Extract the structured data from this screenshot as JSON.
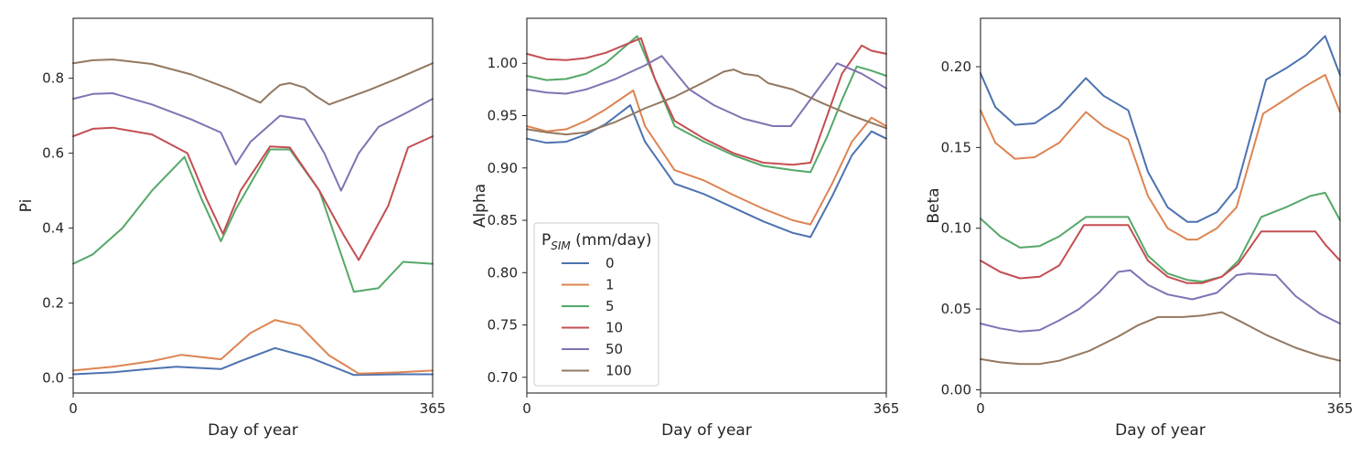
{
  "colors": {
    "0": "#4c72b0",
    "1": "#dd8452",
    "5": "#55a868",
    "10": "#c44e52",
    "50": "#8172b3",
    "100": "#937860"
  },
  "legend": {
    "title_main": "P",
    "title_sub": "SIM",
    "title_rest": " (mm/day)",
    "entries": [
      "0",
      "1",
      "5",
      "10",
      "50",
      "100"
    ]
  },
  "chart_data": [
    {
      "type": "line",
      "xlabel": "Day of year",
      "ylabel": "Pi",
      "xlim": [
        0,
        365
      ],
      "ylim": [
        -0.04,
        0.96
      ],
      "xticks": [
        0,
        365
      ],
      "xtick_labels": [
        "0",
        "365"
      ],
      "yticks": [
        0.0,
        0.2,
        0.4,
        0.6,
        0.8
      ],
      "ytick_labels": [
        "0.0",
        "0.2",
        "0.4",
        "0.6",
        "0.8"
      ],
      "series": [
        {
          "name": "0",
          "x": [
            0,
            40,
            80,
            105,
            120,
            150,
            170,
            205,
            240,
            285,
            330,
            365
          ],
          "y": [
            0.01,
            0.015,
            0.025,
            0.03,
            0.028,
            0.024,
            0.045,
            0.08,
            0.055,
            0.008,
            0.01,
            0.01
          ]
        },
        {
          "name": "1",
          "x": [
            0,
            40,
            80,
            110,
            150,
            180,
            205,
            230,
            260,
            290,
            330,
            365
          ],
          "y": [
            0.02,
            0.03,
            0.045,
            0.062,
            0.05,
            0.12,
            0.155,
            0.14,
            0.06,
            0.012,
            0.015,
            0.02
          ]
        },
        {
          "name": "5",
          "x": [
            0,
            20,
            50,
            80,
            113,
            130,
            150,
            165,
            200,
            220,
            250,
            285,
            310,
            335,
            365
          ],
          "y": [
            0.305,
            0.33,
            0.4,
            0.5,
            0.59,
            0.48,
            0.365,
            0.45,
            0.61,
            0.61,
            0.5,
            0.23,
            0.24,
            0.31,
            0.305
          ]
        },
        {
          "name": "10",
          "x": [
            0,
            20,
            40,
            80,
            116,
            135,
            152,
            170,
            200,
            220,
            250,
            275,
            290,
            320,
            340,
            365
          ],
          "y": [
            0.645,
            0.665,
            0.668,
            0.65,
            0.6,
            0.48,
            0.385,
            0.5,
            0.618,
            0.615,
            0.5,
            0.38,
            0.315,
            0.46,
            0.615,
            0.645
          ]
        },
        {
          "name": "50",
          "x": [
            0,
            20,
            40,
            80,
            120,
            150,
            165,
            180,
            210,
            235,
            255,
            272,
            290,
            310,
            340,
            365
          ],
          "y": [
            0.745,
            0.758,
            0.76,
            0.73,
            0.69,
            0.655,
            0.57,
            0.63,
            0.7,
            0.69,
            0.6,
            0.5,
            0.6,
            0.67,
            0.71,
            0.745
          ]
        },
        {
          "name": "100",
          "x": [
            0,
            20,
            40,
            80,
            120,
            160,
            190,
            200,
            210,
            220,
            235,
            245,
            260,
            300,
            330,
            365
          ],
          "y": [
            0.84,
            0.848,
            0.85,
            0.838,
            0.81,
            0.77,
            0.735,
            0.76,
            0.782,
            0.787,
            0.775,
            0.755,
            0.73,
            0.768,
            0.8,
            0.84
          ]
        }
      ]
    },
    {
      "type": "line",
      "xlabel": "Day of year",
      "ylabel": "Alpha",
      "xlim": [
        0,
        365
      ],
      "ylim": [
        0.685,
        1.043
      ],
      "xticks": [
        0,
        365
      ],
      "xtick_labels": [
        "0",
        "365"
      ],
      "yticks": [
        0.7,
        0.75,
        0.8,
        0.85,
        0.9,
        0.95,
        1.0
      ],
      "ytick_labels": [
        "0.70",
        "0.75",
        "0.80",
        "0.85",
        "0.90",
        "0.95",
        "1.00"
      ],
      "series": [
        {
          "name": "0",
          "x": [
            0,
            20,
            40,
            60,
            80,
            105,
            120,
            150,
            180,
            210,
            240,
            270,
            288,
            310,
            330,
            350,
            365
          ],
          "y": [
            0.928,
            0.924,
            0.925,
            0.932,
            0.942,
            0.96,
            0.925,
            0.885,
            0.875,
            0.862,
            0.849,
            0.838,
            0.834,
            0.873,
            0.912,
            0.935,
            0.928
          ]
        },
        {
          "name": "1",
          "x": [
            0,
            20,
            40,
            60,
            80,
            108,
            120,
            150,
            180,
            210,
            240,
            270,
            288,
            310,
            330,
            350,
            365
          ],
          "y": [
            0.94,
            0.935,
            0.937,
            0.945,
            0.956,
            0.974,
            0.94,
            0.898,
            0.888,
            0.874,
            0.861,
            0.85,
            0.846,
            0.885,
            0.925,
            0.948,
            0.94
          ]
        },
        {
          "name": "5",
          "x": [
            0,
            20,
            40,
            60,
            80,
            112,
            130,
            150,
            180,
            210,
            240,
            270,
            288,
            305,
            320,
            335,
            350,
            365
          ],
          "y": [
            0.988,
            0.984,
            0.985,
            0.99,
            1.0,
            1.026,
            0.985,
            0.94,
            0.925,
            0.912,
            0.902,
            0.898,
            0.896,
            0.93,
            0.965,
            0.997,
            0.993,
            0.988
          ]
        },
        {
          "name": "10",
          "x": [
            0,
            20,
            40,
            60,
            80,
            116,
            130,
            150,
            180,
            210,
            240,
            270,
            288,
            305,
            320,
            340,
            350,
            365
          ],
          "y": [
            1.009,
            1.004,
            1.003,
            1.005,
            1.01,
            1.024,
            0.985,
            0.945,
            0.928,
            0.914,
            0.905,
            0.903,
            0.905,
            0.95,
            0.99,
            1.017,
            1.012,
            1.009
          ]
        },
        {
          "name": "50",
          "x": [
            0,
            20,
            40,
            60,
            90,
            120,
            137,
            165,
            190,
            220,
            250,
            268,
            290,
            315,
            340,
            365
          ],
          "y": [
            0.975,
            0.972,
            0.971,
            0.975,
            0.985,
            0.998,
            1.007,
            0.975,
            0.96,
            0.947,
            0.94,
            0.94,
            0.968,
            1.0,
            0.99,
            0.976
          ]
        },
        {
          "name": "100",
          "x": [
            0,
            20,
            40,
            60,
            90,
            120,
            150,
            180,
            200,
            210,
            220,
            235,
            245,
            270,
            300,
            330,
            365
          ],
          "y": [
            0.937,
            0.934,
            0.932,
            0.934,
            0.944,
            0.957,
            0.968,
            0.982,
            0.992,
            0.994,
            0.99,
            0.988,
            0.981,
            0.975,
            0.962,
            0.95,
            0.938
          ]
        }
      ]
    },
    {
      "type": "line",
      "xlabel": "Day of year",
      "ylabel": "Beta",
      "xlim": [
        0,
        365
      ],
      "ylim": [
        -0.002,
        0.23
      ],
      "xticks": [
        0,
        365
      ],
      "xtick_labels": [
        "0",
        "365"
      ],
      "yticks": [
        0.0,
        0.05,
        0.1,
        0.15,
        0.2
      ],
      "ytick_labels": [
        "0.00",
        "0.05",
        "0.10",
        "0.15",
        "0.20"
      ],
      "series": [
        {
          "name": "0",
          "x": [
            0,
            15,
            35,
            55,
            80,
            107,
            125,
            150,
            170,
            190,
            210,
            220,
            240,
            260,
            290,
            310,
            330,
            350,
            365
          ],
          "y": [
            0.196,
            0.175,
            0.164,
            0.165,
            0.175,
            0.193,
            0.182,
            0.173,
            0.135,
            0.113,
            0.104,
            0.104,
            0.11,
            0.125,
            0.192,
            0.199,
            0.207,
            0.219,
            0.195
          ]
        },
        {
          "name": "1",
          "x": [
            0,
            15,
            35,
            55,
            80,
            107,
            125,
            150,
            170,
            190,
            210,
            220,
            240,
            260,
            287,
            310,
            330,
            350,
            365
          ],
          "y": [
            0.173,
            0.153,
            0.143,
            0.144,
            0.153,
            0.172,
            0.163,
            0.155,
            0.12,
            0.1,
            0.093,
            0.093,
            0.1,
            0.113,
            0.171,
            0.18,
            0.188,
            0.195,
            0.172
          ]
        },
        {
          "name": "5",
          "x": [
            0,
            20,
            40,
            60,
            80,
            107,
            150,
            170,
            190,
            210,
            225,
            245,
            262,
            285,
            310,
            335,
            350,
            365
          ],
          "y": [
            0.106,
            0.095,
            0.088,
            0.089,
            0.095,
            0.107,
            0.107,
            0.083,
            0.072,
            0.068,
            0.067,
            0.07,
            0.08,
            0.107,
            0.113,
            0.12,
            0.122,
            0.105
          ]
        },
        {
          "name": "10",
          "x": [
            0,
            20,
            40,
            60,
            80,
            105,
            150,
            170,
            190,
            210,
            225,
            245,
            262,
            285,
            310,
            330,
            340,
            350,
            365
          ],
          "y": [
            0.08,
            0.073,
            0.069,
            0.07,
            0.077,
            0.102,
            0.102,
            0.08,
            0.07,
            0.066,
            0.066,
            0.07,
            0.078,
            0.098,
            0.098,
            0.098,
            0.098,
            0.09,
            0.08
          ]
        },
        {
          "name": "50",
          "x": [
            0,
            20,
            40,
            60,
            80,
            100,
            120,
            140,
            152,
            170,
            190,
            215,
            240,
            260,
            272,
            300,
            320,
            345,
            365
          ],
          "y": [
            0.041,
            0.038,
            0.036,
            0.037,
            0.043,
            0.05,
            0.06,
            0.073,
            0.074,
            0.065,
            0.059,
            0.056,
            0.06,
            0.071,
            0.072,
            0.071,
            0.058,
            0.047,
            0.041
          ]
        },
        {
          "name": "100",
          "x": [
            0,
            20,
            40,
            60,
            80,
            110,
            140,
            160,
            180,
            205,
            225,
            245,
            265,
            290,
            320,
            345,
            365
          ],
          "y": [
            0.019,
            0.017,
            0.016,
            0.016,
            0.018,
            0.024,
            0.033,
            0.04,
            0.045,
            0.045,
            0.046,
            0.048,
            0.042,
            0.034,
            0.026,
            0.021,
            0.018
          ]
        }
      ]
    }
  ]
}
